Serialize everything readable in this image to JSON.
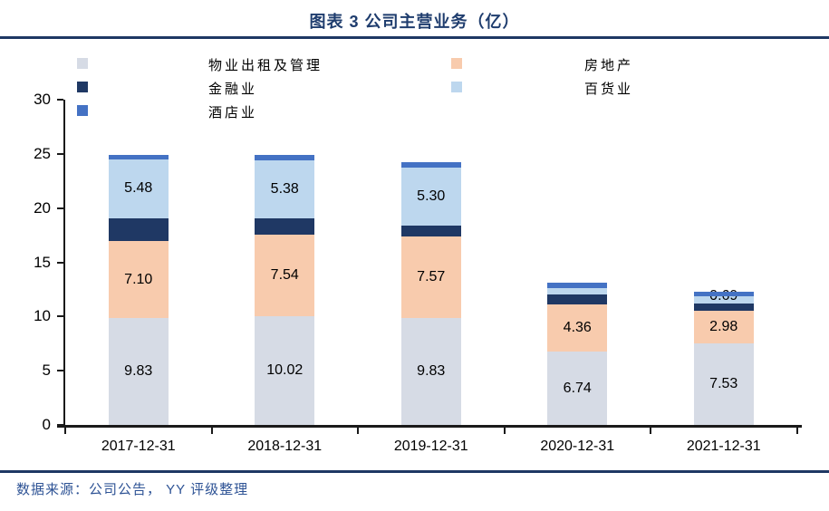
{
  "header": {
    "title": "图表 3 公司主营业务（亿）"
  },
  "footer": {
    "source": "数据来源：公司公告， YY 评级整理"
  },
  "colors": {
    "title_blue": "#1f3d6e",
    "rule_navy": "#1f3864",
    "source_blue": "#2e5395",
    "axis_black": "#1a1a1a",
    "property_mgmt_gray": "#d6dbe5",
    "real_estate_peach": "#f8cbad",
    "finance_navy": "#1f3864",
    "department_store_lightblue": "#bdd7ee",
    "hotel_blue": "#4472c4"
  },
  "chart_data": {
    "type": "bar",
    "stacked": true,
    "title": "图表 3 公司主营业务（亿）",
    "xlabel": "",
    "ylabel": "",
    "ylim": [
      0,
      30
    ],
    "yticks": [
      0,
      5,
      10,
      15,
      20,
      25,
      30
    ],
    "grid": false,
    "legend_position": "top-left-two-columns",
    "categories": [
      "2017-12-31",
      "2018-12-31",
      "2019-12-31",
      "2020-12-31",
      "2021-12-31"
    ],
    "series": [
      {
        "name": "物业出租及管理",
        "color": "#d6dbe5",
        "values": [
          9.83,
          10.02,
          9.83,
          6.74,
          7.53
        ],
        "labels": [
          "9.83",
          "10.02",
          "9.83",
          "6.74",
          "7.53"
        ]
      },
      {
        "name": "房地产",
        "color": "#f8cbad",
        "values": [
          7.1,
          7.54,
          7.57,
          4.36,
          2.98
        ],
        "labels": [
          "7.10",
          "7.54",
          "7.57",
          "4.36",
          "2.98"
        ]
      },
      {
        "name": "金融业",
        "color": "#1f3864",
        "values": [
          2.1,
          1.5,
          1.0,
          0.9,
          0.65
        ],
        "labels": [
          "",
          "",
          "",
          "",
          ""
        ]
      },
      {
        "name": "百货业",
        "color": "#bdd7ee",
        "values": [
          5.48,
          5.38,
          5.3,
          0.65,
          0.69
        ],
        "labels": [
          "5.48",
          "5.38",
          "5.30",
          "",
          "0.69"
        ]
      },
      {
        "name": "酒店业",
        "color": "#4472c4",
        "values": [
          0.4,
          0.45,
          0.5,
          0.5,
          0.4
        ],
        "labels": [
          "",
          "",
          "",
          "",
          ""
        ]
      }
    ]
  }
}
